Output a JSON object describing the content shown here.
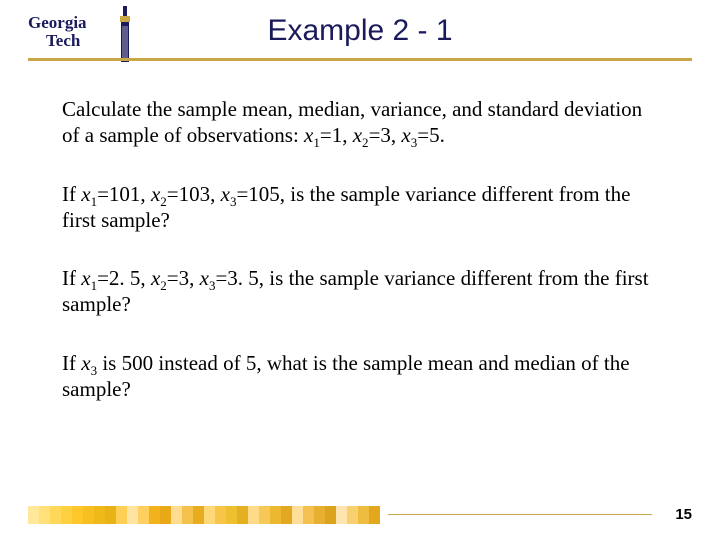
{
  "logo": {
    "line1": "Georgia",
    "line2": "Tech",
    "text_color": "#1a1a5c",
    "accent_color": "#c9a646"
  },
  "title": {
    "text": "Example 2 - 1",
    "color": "#1a1a5c",
    "fontsize": 30
  },
  "rule_color": "#c9a646",
  "paragraphs": [
    {
      "segments": [
        {
          "t": "Calculate the sample mean, median, variance, and standard deviation of a sample of observations: "
        },
        {
          "t": "x",
          "ital": true
        },
        {
          "t": "1",
          "sub": true
        },
        {
          "t": "=1, "
        },
        {
          "t": "x",
          "ital": true
        },
        {
          "t": "2",
          "sub": true
        },
        {
          "t": "=3, "
        },
        {
          "t": "x",
          "ital": true
        },
        {
          "t": "3",
          "sub": true
        },
        {
          "t": "=5."
        }
      ]
    },
    {
      "segments": [
        {
          "t": "If "
        },
        {
          "t": "x",
          "ital": true
        },
        {
          "t": "1",
          "sub": true
        },
        {
          "t": "=101, "
        },
        {
          "t": "x",
          "ital": true
        },
        {
          "t": "2",
          "sub": true
        },
        {
          "t": "=103, "
        },
        {
          "t": "x",
          "ital": true
        },
        {
          "t": "3",
          "sub": true
        },
        {
          "t": "=105, is the sample variance different from the first sample?"
        }
      ]
    },
    {
      "segments": [
        {
          "t": "If "
        },
        {
          "t": "x",
          "ital": true
        },
        {
          "t": "1",
          "sub": true
        },
        {
          "t": "=2. 5, "
        },
        {
          "t": "x",
          "ital": true
        },
        {
          "t": "2",
          "sub": true
        },
        {
          "t": "=3, "
        },
        {
          "t": "x",
          "ital": true
        },
        {
          "t": "3",
          "sub": true
        },
        {
          "t": "=3. 5, is the sample variance different from the first sample?"
        }
      ]
    },
    {
      "segments": [
        {
          "t": "If "
        },
        {
          "t": "x",
          "ital": true
        },
        {
          "t": "3",
          "sub": true
        },
        {
          "t": " is 500 instead of 5, what is the sample mean and median of the sample?"
        }
      ]
    }
  ],
  "footer": {
    "page_number": "15",
    "stripe_colors": [
      "#ffe89a",
      "#ffe07a",
      "#ffd85a",
      "#ffd040",
      "#ffc72a",
      "#f8bf20",
      "#f0b91a",
      "#e8b316",
      "#ffcf55",
      "#ffe3a0",
      "#ffd060",
      "#f2b21c",
      "#e8a818",
      "#ffdc90",
      "#f4c24a",
      "#e8ac20",
      "#ffd878",
      "#f8c548",
      "#eec030",
      "#e4b020",
      "#ffda88",
      "#f6c858",
      "#ecb830",
      "#e2a820",
      "#ffde98",
      "#f4c050",
      "#e8b030",
      "#dca41c",
      "#ffe4b0",
      "#f8d070",
      "#eebc40",
      "#e2a81c"
    ],
    "stripe_width": 11,
    "line_color": "#c9a646"
  }
}
